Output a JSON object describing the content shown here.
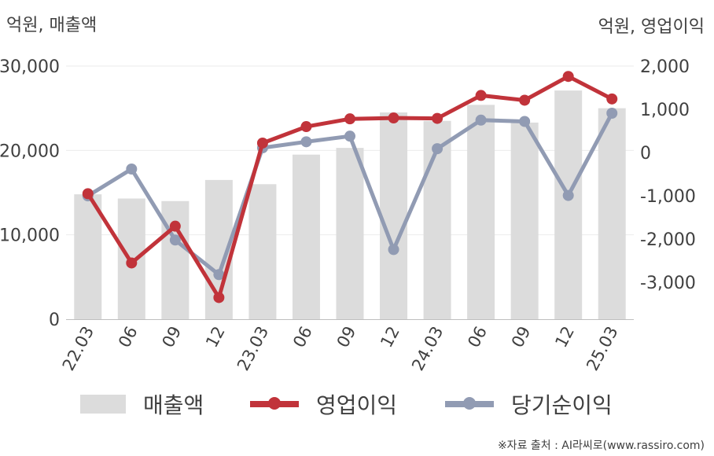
{
  "units": {
    "left": "억원, 매출액",
    "right": "억원, 영업이익"
  },
  "source": "※자료 출처 : AI라씨로(www.rassiro.com)",
  "colors": {
    "sales": "#dcdcdc",
    "operating_profit": "#c1333a",
    "net_income": "#919bb3"
  },
  "legend": [
    {
      "label": "매출액",
      "type": "bar",
      "color": "#dcdcdc"
    },
    {
      "label": "영업이익",
      "type": "line",
      "color": "#c1333a"
    },
    {
      "label": "당기순이익",
      "type": "line",
      "color": "#919bb3"
    }
  ],
  "chart_data": {
    "type": "bar+line",
    "categories": [
      "22.03",
      "06",
      "09",
      "12",
      "23.03",
      "06",
      "09",
      "12",
      "24.03",
      "06",
      "09",
      "12",
      "25.03"
    ],
    "left_axis": {
      "ticks": [
        "0",
        "10,000",
        "20,000",
        "30,000"
      ],
      "tick_values": [
        0,
        10000,
        20000,
        30000
      ],
      "range": [
        0,
        30000
      ]
    },
    "right_axis": {
      "ticks": [
        "-3,000",
        "-2,000",
        "-1,000",
        "0",
        "1,000",
        "2,000"
      ],
      "tick_values": [
        -3000,
        -2000,
        -1000,
        0,
        1000,
        2000
      ],
      "range": [
        -3850,
        2000
      ]
    },
    "series": [
      {
        "name": "매출액",
        "type": "bar",
        "axis": "left",
        "values": [
          14800,
          14300,
          14000,
          16500,
          16000,
          19500,
          20300,
          24500,
          23500,
          25400,
          23300,
          27100,
          25000
        ]
      },
      {
        "name": "영업이익",
        "type": "line",
        "axis": "right",
        "values": [
          -950,
          -2550,
          -1700,
          -3350,
          220,
          600,
          780,
          800,
          790,
          1320,
          1210,
          1760,
          1240
        ]
      },
      {
        "name": "당기순이익",
        "type": "line",
        "axis": "right",
        "values": [
          -1000,
          -380,
          -2020,
          -2820,
          110,
          250,
          380,
          -2240,
          90,
          750,
          720,
          -990,
          910
        ]
      }
    ],
    "grid": true,
    "legend_position": "bottom"
  }
}
